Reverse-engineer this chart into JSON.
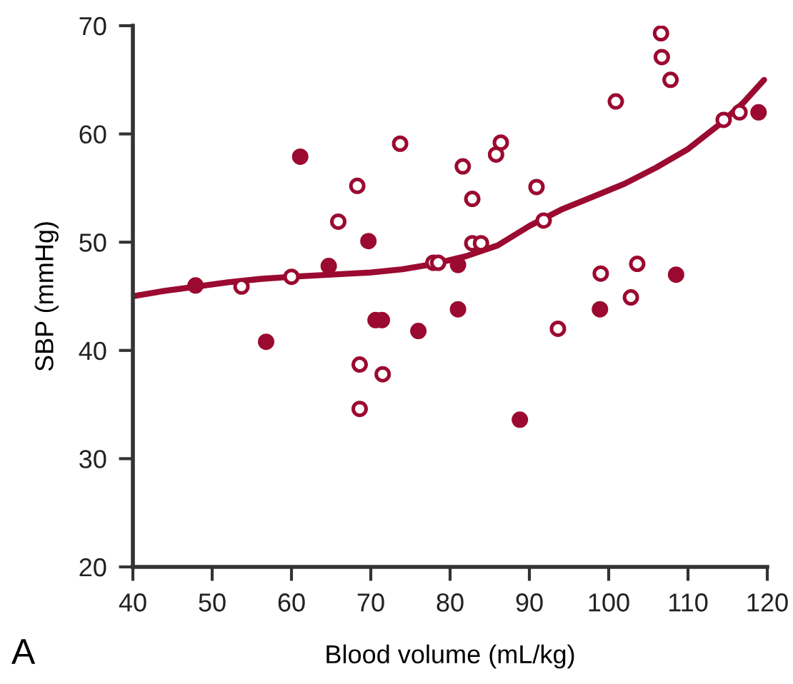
{
  "chart_data": {
    "type": "scatter",
    "xlabel": "Blood volume (mL/kg)",
    "ylabel": "SBP (mmHg)",
    "xlim": [
      40,
      120
    ],
    "xticks": [
      40,
      50,
      60,
      70,
      80,
      90,
      100,
      110,
      120
    ],
    "ylim": [
      20,
      70
    ],
    "yticks": [
      20,
      30,
      40,
      50,
      60,
      70
    ],
    "grid": false,
    "annotations": [
      "A"
    ],
    "series": [
      {
        "marker": "circle",
        "color": "#9b0a30",
        "x": [
          47.9,
          61.1,
          56.8,
          64.7,
          69.7,
          70.6,
          71.4,
          76.0,
          81.0,
          81.0,
          88.8,
          98.9,
          108.5,
          118.9
        ],
        "values": [
          46.0,
          57.9,
          40.8,
          47.8,
          50.1,
          42.8,
          42.8,
          41.8,
          47.9,
          43.8,
          33.6,
          43.8,
          47.0,
          62.0
        ]
      },
      {
        "marker": "circle",
        "color": "#9b0a30",
        "x": [
          53.7,
          60.0,
          65.9,
          68.3,
          68.6,
          68.6,
          71.5,
          73.7,
          77.9,
          78.5,
          81.6,
          82.8,
          82.8,
          83.9,
          85.8,
          86.4,
          90.9,
          91.8,
          93.6,
          99.0,
          102.8,
          103.6,
          100.9,
          106.6,
          106.7,
          107.8,
          114.5,
          116.5
        ],
        "values": [
          45.9,
          46.8,
          51.9,
          55.2,
          38.7,
          34.6,
          37.8,
          59.1,
          48.1,
          48.1,
          57.0,
          54.0,
          49.9,
          49.9,
          58.1,
          59.2,
          55.1,
          52.0,
          42.0,
          47.1,
          44.9,
          48.0,
          63.0,
          69.3,
          67.1,
          65.0,
          61.3,
          62.0
        ]
      },
      {
        "type": "line",
        "line_style": "solid",
        "color": "#9b0a30",
        "x": [
          40,
          44,
          48,
          52,
          56,
          60,
          65,
          70,
          74,
          78,
          82,
          86,
          90,
          94,
          98,
          102,
          106,
          110,
          114,
          117,
          119.6
        ],
        "values": [
          45.0,
          45.5,
          45.9,
          46.3,
          46.6,
          46.8,
          47.0,
          47.2,
          47.5,
          48.0,
          48.7,
          49.7,
          51.5,
          53.0,
          54.2,
          55.4,
          56.9,
          58.6,
          60.9,
          62.9,
          65.0
        ]
      }
    ]
  }
}
